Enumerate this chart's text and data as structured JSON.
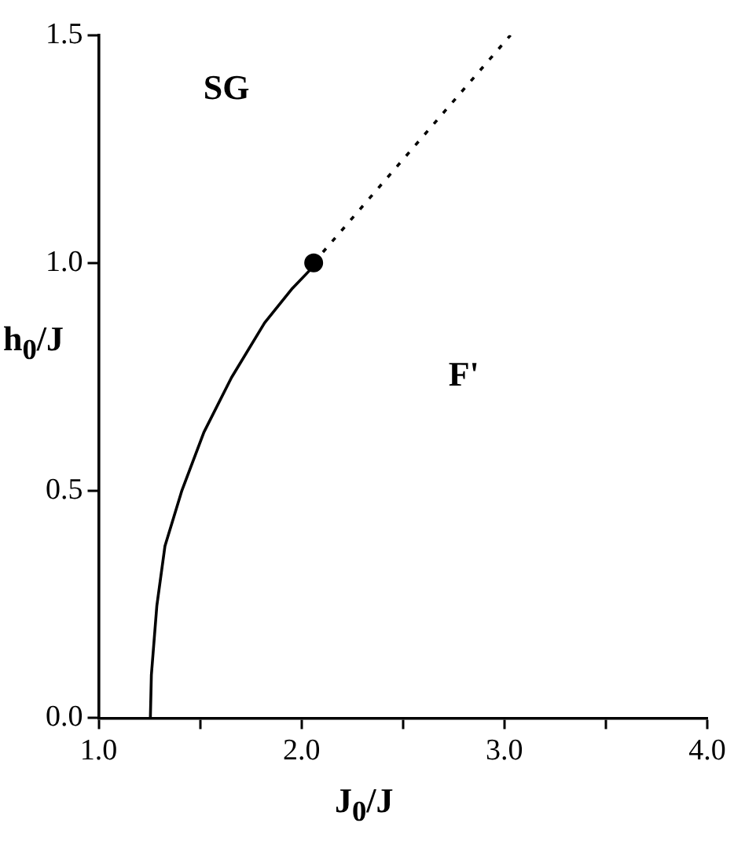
{
  "chart_data": {
    "type": "line",
    "xlabel": "J$_{0}$/J",
    "ylabel": "h$_{0}$/J",
    "xlim": [
      1.0,
      4.0
    ],
    "xticks": [
      {
        "value": 1.0,
        "label": "1.0"
      },
      {
        "value": 1.5,
        "label": null
      },
      {
        "value": 2.0,
        "label": "2.0"
      },
      {
        "value": 2.5,
        "label": null
      },
      {
        "value": 3.0,
        "label": "3.0"
      },
      {
        "value": 3.5,
        "label": null
      },
      {
        "value": 4.0,
        "label": "4.0"
      }
    ],
    "ylim": [
      0,
      1.5
    ],
    "yticks": [
      {
        "value": 0,
        "label": "0.0"
      },
      {
        "value": 0.5,
        "label": "0.5"
      },
      {
        "value": 1.0,
        "label": "1.0"
      },
      {
        "value": 1.5,
        "label": "1.5"
      }
    ],
    "grid": false,
    "legend": false,
    "series": [
      {
        "color": "#000000",
        "line_style": "solid",
        "marker": "none",
        "x": [
          1.255,
          1.26,
          1.287,
          1.327,
          1.409,
          1.519,
          1.655,
          1.818,
          1.955,
          2.05,
          2.06
        ],
        "values": [
          0,
          0.095,
          0.247,
          0.378,
          0.498,
          0.628,
          0.748,
          0.868,
          0.944,
          0.988,
          1.0
        ]
      },
      {
        "type": "scatter",
        "color": "#000000",
        "marker": "circle",
        "x": [
          2.06
        ],
        "values": [
          1.0
        ]
      },
      {
        "type": "line",
        "color": "#000000",
        "line_style": "dotted",
        "marker": "none",
        "x": [
          2.06,
          3.03
        ],
        "values": [
          1.0,
          1.5
        ]
      }
    ],
    "annotations": [
      "SG",
      "F'"
    ]
  }
}
